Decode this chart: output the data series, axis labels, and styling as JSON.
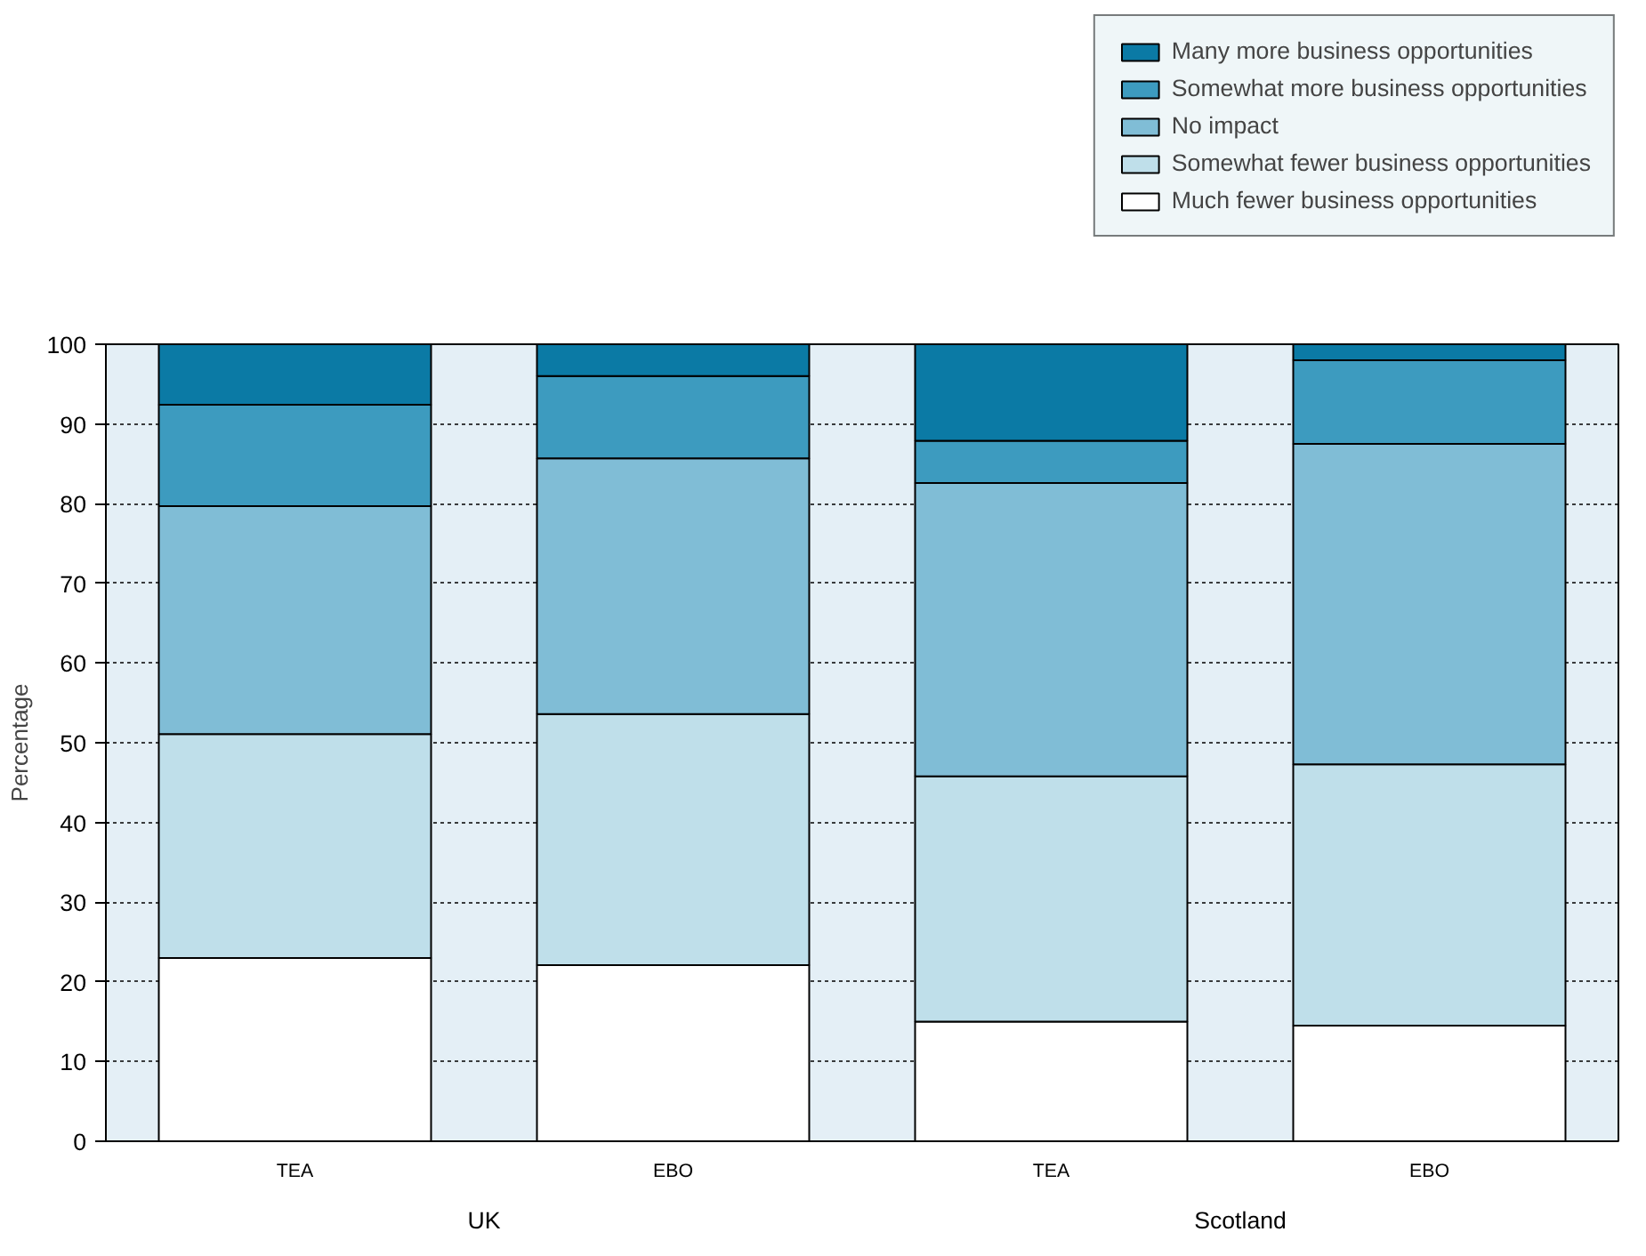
{
  "chart_data": {
    "type": "bar",
    "stacked": true,
    "categories": [
      "TEA",
      "EBO",
      "TEA",
      "EBO"
    ],
    "annotations": [
      "UK",
      "Scotland"
    ],
    "ylabel": "Percentage",
    "series": [
      {
        "name": "Much fewer business opportunities",
        "color": "#ffffff",
        "values": [
          23.0,
          22.1,
          15.0,
          14.5
        ]
      },
      {
        "name": "Somewhat fewer business opportunities",
        "color": "#bfdfea",
        "values": [
          28.1,
          31.5,
          30.8,
          32.8
        ]
      },
      {
        "name": "No impact",
        "color": "#80bdd6",
        "values": [
          28.6,
          32.1,
          36.8,
          40.2
        ]
      },
      {
        "name": "Somewhat more business opportunities",
        "color": "#3d9bbf",
        "values": [
          12.7,
          10.3,
          5.3,
          10.5
        ]
      },
      {
        "name": "Many more business opportunities",
        "color": "#0b7aa5",
        "values": [
          7.6,
          4.0,
          12.1,
          2.0
        ]
      }
    ],
    "ylim": [
      0,
      100
    ],
    "yticks": [
      0,
      10,
      20,
      30,
      40,
      50,
      60,
      70,
      80,
      90,
      100
    ],
    "grid": "y",
    "legend": "top right"
  }
}
